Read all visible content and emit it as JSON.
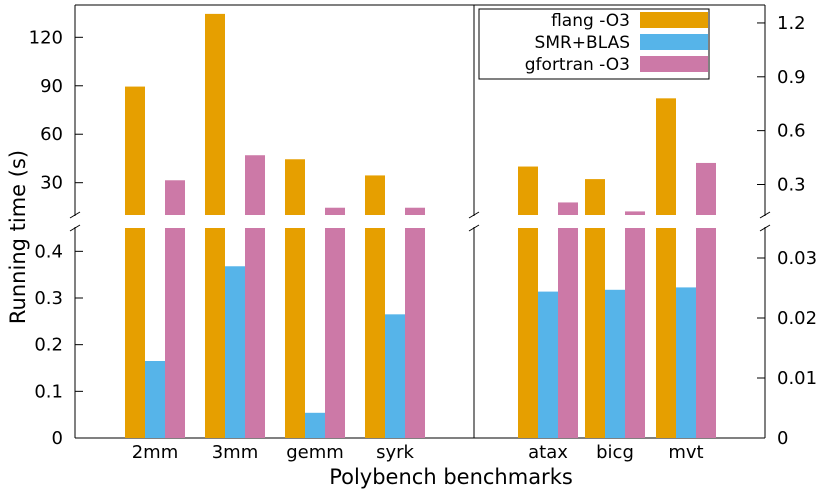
{
  "chart_data": {
    "type": "bar",
    "xlabel": "Polybench benchmarks",
    "ylabel": "Running time (s)",
    "legend_position": "top-right",
    "colors": {
      "flang -O3": "#E69F00",
      "SMR+BLAS": "#56B4E9",
      "gfortran -O3": "#CC79A7"
    },
    "legend": [
      "flang -O3",
      "SMR+BLAS",
      "gfortran -O3"
    ],
    "panels": [
      {
        "name": "left",
        "categories": [
          "2mm",
          "3mm",
          "gemm",
          "syrk"
        ],
        "upper_axis": {
          "side": "left",
          "ylim": [
            10,
            140
          ],
          "ticks": [
            "30",
            "60",
            "90",
            "120"
          ],
          "tick_values": [
            30,
            60,
            90,
            120
          ]
        },
        "lower_axis": {
          "side": "left",
          "ylim": [
            0,
            0.45
          ],
          "ticks": [
            "0",
            "0.1",
            "0.2",
            "0.3",
            "0.4"
          ],
          "tick_values": [
            0,
            0.1,
            0.2,
            0.3,
            0.4
          ]
        },
        "series": [
          {
            "name": "flang -O3",
            "values": [
              89.5,
              134.5,
              44.5,
              34.5
            ]
          },
          {
            "name": "SMR+BLAS",
            "values": [
              0.165,
              0.368,
              0.054,
              0.265
            ]
          },
          {
            "name": "gfortran -O3",
            "values": [
              31.5,
              47.0,
              14.5,
              14.5
            ]
          }
        ]
      },
      {
        "name": "right",
        "categories": [
          "atax",
          "bicg",
          "mvt"
        ],
        "upper_axis": {
          "side": "right",
          "ylim": [
            0.13,
            1.3
          ],
          "ticks": [
            "0.3",
            "0.6",
            "0.9",
            "1.2"
          ],
          "tick_values": [
            0.3,
            0.6,
            0.9,
            1.2
          ]
        },
        "lower_axis": {
          "side": "right",
          "ylim": [
            0,
            0.035
          ],
          "ticks": [
            "0",
            "0.01",
            "0.02",
            "0.03"
          ],
          "tick_values": [
            0,
            0.01,
            0.02,
            0.03
          ]
        },
        "series": [
          {
            "name": "flang -O3",
            "values": [
              0.4,
              0.33,
              0.78
            ]
          },
          {
            "name": "SMR+BLAS",
            "values": [
              0.0244,
              0.0247,
              0.0251
            ]
          },
          {
            "name": "gfortran -O3",
            "values": [
              0.2,
              0.15,
              0.42
            ]
          }
        ]
      }
    ]
  }
}
